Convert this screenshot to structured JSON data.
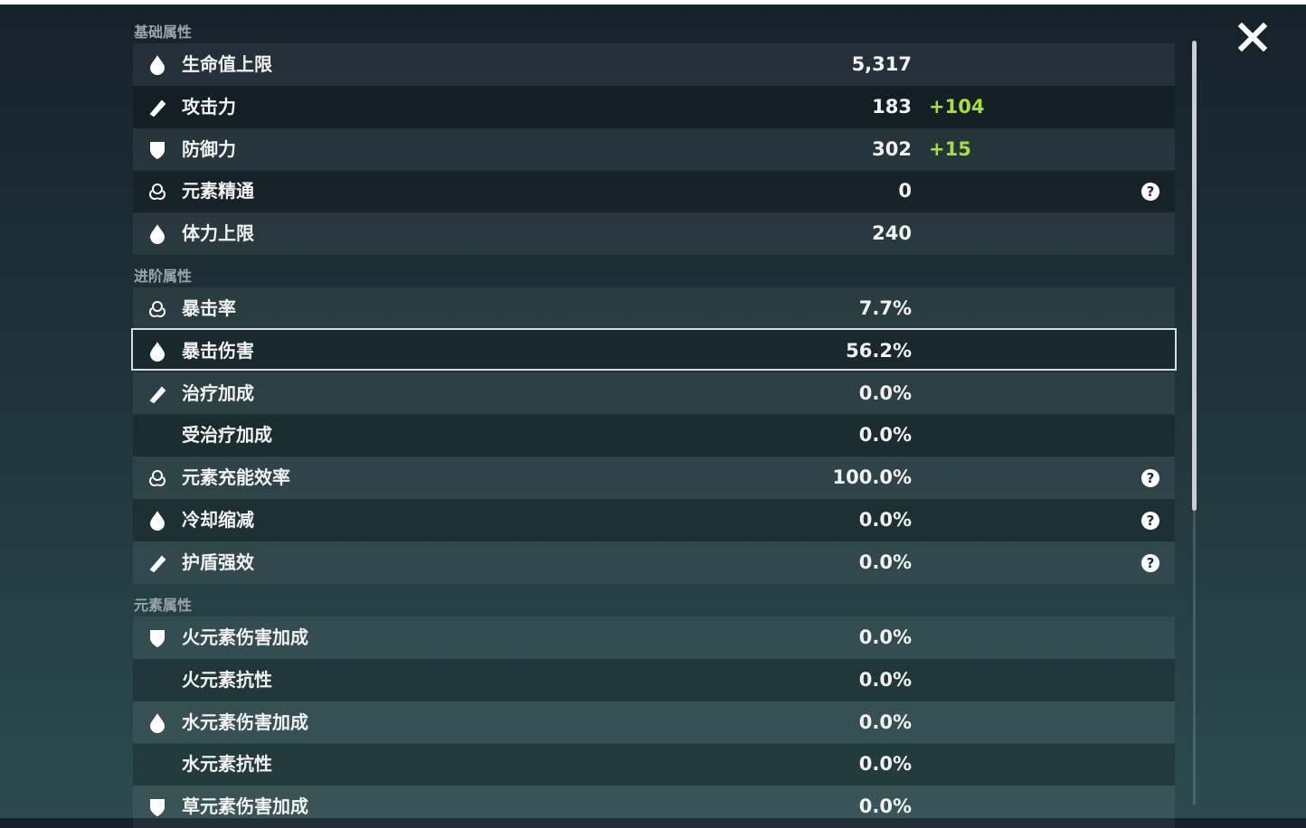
{
  "sections": [
    {
      "title": "基础属性",
      "rows": [
        {
          "label": "生命值上限",
          "value": "5,317"
        },
        {
          "label": "攻击力",
          "value": "183",
          "bonus": "+104"
        },
        {
          "label": "防御力",
          "value": "302",
          "bonus": "+15"
        },
        {
          "label": "元素精通",
          "value": "0"
        },
        {
          "label": "体力上限",
          "value": "240"
        }
      ]
    },
    {
      "title": "进阶属性",
      "rows": [
        {
          "label": "暴击率",
          "value": "7.7%"
        },
        {
          "label": "暴击伤害",
          "value": "56.2%"
        },
        {
          "label": "治疗加成",
          "value": "0.0%"
        },
        {
          "label": "受治疗加成",
          "value": "0.0%"
        },
        {
          "label": "元素充能效率",
          "value": "100.0%"
        },
        {
          "label": "冷却缩减",
          "value": "0.0%"
        },
        {
          "label": "护盾强效",
          "value": "0.0%"
        }
      ]
    },
    {
      "title": "元素属性",
      "rows": [
        {
          "label": "火元素伤害加成",
          "value": "0.0%"
        },
        {
          "label": "火元素抗性",
          "value": "0.0%"
        },
        {
          "label": "水元素伤害加成",
          "value": "0.0%"
        },
        {
          "label": "水元素抗性",
          "value": "0.0%"
        },
        {
          "label": "草元素伤害加成",
          "value": "0.0%"
        }
      ]
    }
  ]
}
